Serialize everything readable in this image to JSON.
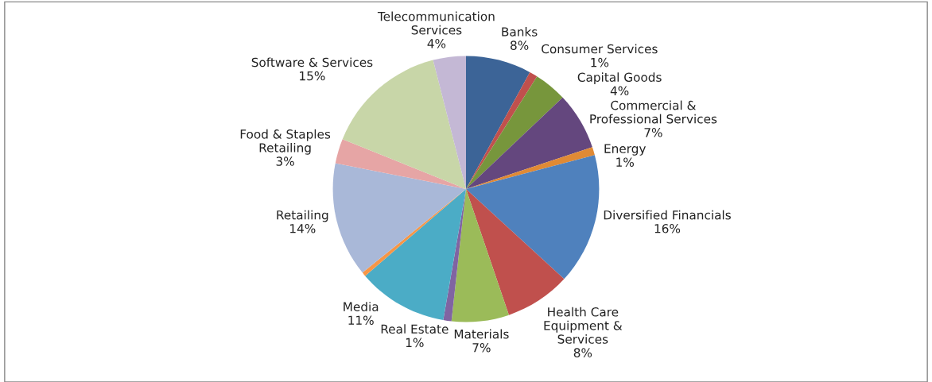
{
  "chart_data": {
    "type": "pie",
    "categories": [
      "Banks",
      "Consumer Services",
      "Capital Goods",
      "Commercial &\nProfessional Services",
      "Energy",
      "Diversified Financials",
      "Health Care\nEquipment &\nServices",
      "Materials",
      "Real Estate",
      "Media",
      null,
      "Retailing",
      "Food & Staples\nRetailing",
      "Software & Services",
      "Telecommunication\nServices"
    ],
    "values": [
      8,
      1,
      4,
      7,
      1,
      16,
      8,
      7,
      1,
      11,
      0.5,
      14,
      3,
      15,
      4
    ],
    "value_labels": [
      "8%",
      "1%",
      "4%",
      "7%",
      "1%",
      "16%",
      "8%",
      "7%",
      "1%",
      "11%",
      null,
      "14%",
      "3%",
      "15%",
      "4%"
    ],
    "colors": [
      "#3c6497",
      "#c0504d",
      "#77963c",
      "#64477e",
      "#e08a35",
      "#4f81bd",
      "#c0504d",
      "#9bbb59",
      "#8064a2",
      "#4bacc6",
      "#f79646",
      "#a9b8d8",
      "#e6a5a5",
      "#c8d6a8",
      "#c4b8d5"
    ],
    "legend": false
  }
}
